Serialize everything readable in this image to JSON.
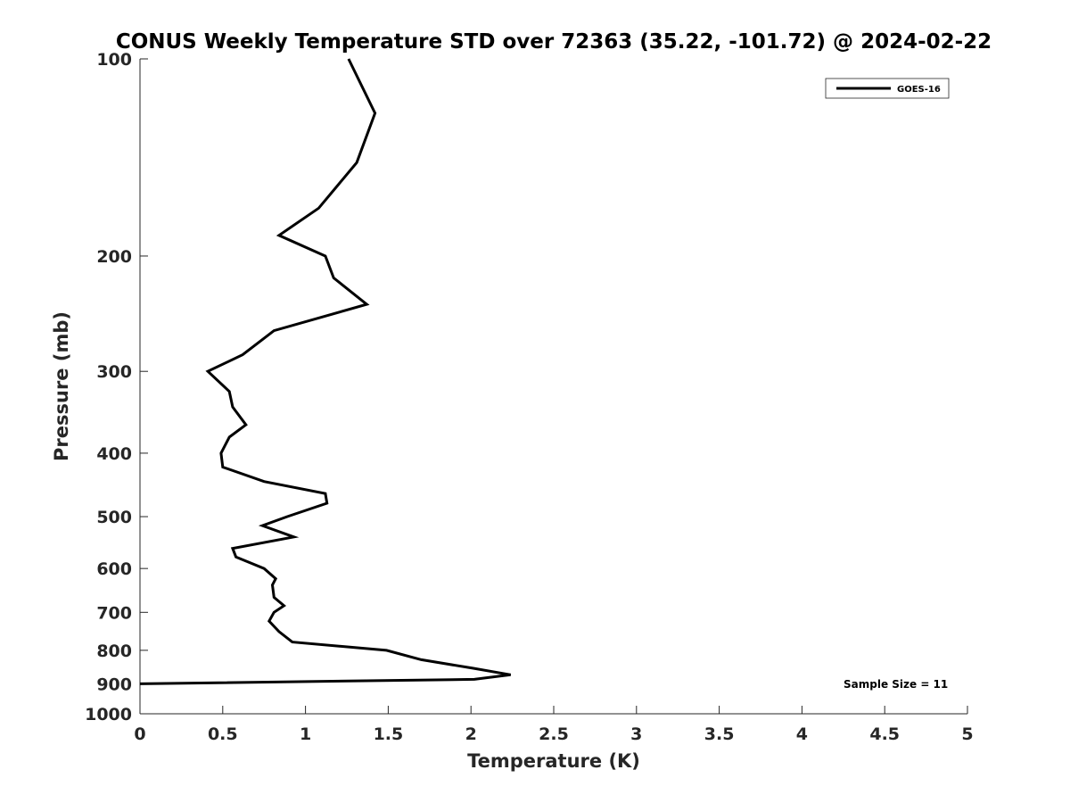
{
  "chart_data": {
    "type": "line",
    "title": "CONUS Weekly Temperature STD over 72363 (35.22, -101.72) @ 2024-02-22",
    "xlabel": "Temperature (K)",
    "ylabel": "Pressure (mb)",
    "xlim": [
      0,
      5
    ],
    "ylim": [
      100,
      1000
    ],
    "y_scale": "log",
    "y_reversed": true,
    "x_ticks": [
      0,
      0.5,
      1,
      1.5,
      2,
      2.5,
      3,
      3.5,
      4,
      4.5,
      5
    ],
    "x_tick_labels": [
      "0",
      "0.5",
      "1",
      "1.5",
      "2",
      "2.5",
      "3",
      "3.5",
      "4",
      "4.5",
      "5"
    ],
    "y_ticks": [
      100,
      200,
      300,
      400,
      500,
      600,
      700,
      800,
      900,
      1000
    ],
    "y_tick_labels": [
      "100",
      "200",
      "300",
      "400",
      "500",
      "600",
      "700",
      "800",
      "900",
      "1000"
    ],
    "grid": false,
    "legend_position": "top-right",
    "series": [
      {
        "name": "GOES-16",
        "color": "#000000",
        "points": [
          {
            "x": 1.26,
            "p": 100
          },
          {
            "x": 1.42,
            "p": 121
          },
          {
            "x": 1.31,
            "p": 144
          },
          {
            "x": 1.08,
            "p": 169
          },
          {
            "x": 0.84,
            "p": 186
          },
          {
            "x": 1.12,
            "p": 200
          },
          {
            "x": 1.17,
            "p": 216
          },
          {
            "x": 1.37,
            "p": 237
          },
          {
            "x": 0.81,
            "p": 260
          },
          {
            "x": 0.62,
            "p": 283
          },
          {
            "x": 0.41,
            "p": 300
          },
          {
            "x": 0.54,
            "p": 322
          },
          {
            "x": 0.56,
            "p": 340
          },
          {
            "x": 0.64,
            "p": 362
          },
          {
            "x": 0.54,
            "p": 378
          },
          {
            "x": 0.49,
            "p": 400
          },
          {
            "x": 0.5,
            "p": 420
          },
          {
            "x": 0.75,
            "p": 442
          },
          {
            "x": 1.12,
            "p": 461
          },
          {
            "x": 1.13,
            "p": 477
          },
          {
            "x": 0.89,
            "p": 500
          },
          {
            "x": 0.74,
            "p": 516
          },
          {
            "x": 0.93,
            "p": 537
          },
          {
            "x": 0.56,
            "p": 559
          },
          {
            "x": 0.58,
            "p": 576
          },
          {
            "x": 0.75,
            "p": 600
          },
          {
            "x": 0.82,
            "p": 622
          },
          {
            "x": 0.8,
            "p": 636
          },
          {
            "x": 0.81,
            "p": 664
          },
          {
            "x": 0.87,
            "p": 684
          },
          {
            "x": 0.81,
            "p": 700
          },
          {
            "x": 0.78,
            "p": 722
          },
          {
            "x": 0.84,
            "p": 749
          },
          {
            "x": 0.92,
            "p": 777
          },
          {
            "x": 1.49,
            "p": 800
          },
          {
            "x": 1.7,
            "p": 827
          },
          {
            "x": 2.01,
            "p": 852
          },
          {
            "x": 2.24,
            "p": 872
          },
          {
            "x": 2.02,
            "p": 886
          },
          {
            "x": 0.0,
            "p": 900
          }
        ]
      }
    ],
    "annotations": [
      "Sample Size = 11"
    ]
  }
}
